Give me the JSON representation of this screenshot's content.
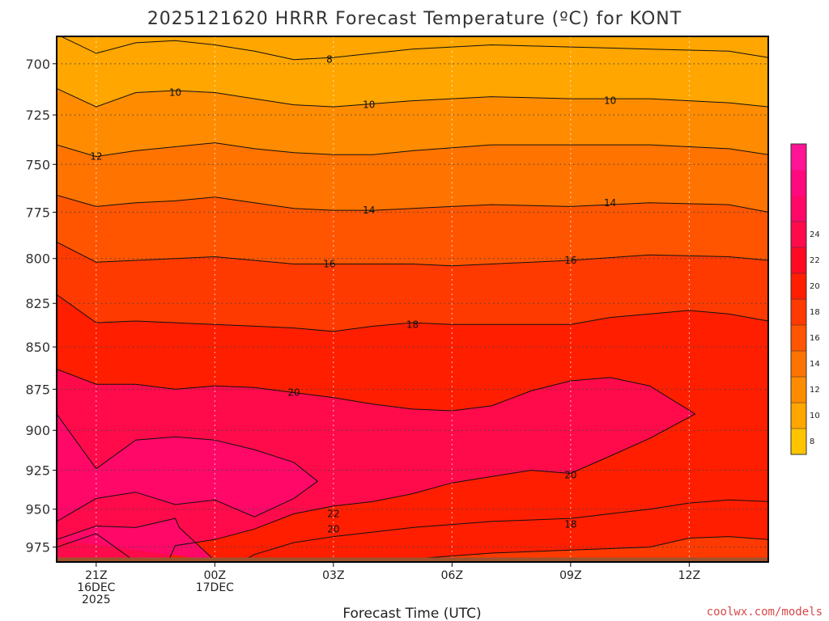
{
  "chart_data": {
    "type": "contour",
    "title": "2025121620 HRRR Forecast Temperature (ºC) for KONT",
    "xlabel": "Forecast Time (UTC)",
    "ylabel": "",
    "credit": "coolwx.com/models",
    "y_scale": "pressure (hPa), inverted",
    "ylim": [
      985,
      687
    ],
    "y_ticks": [
      700,
      725,
      750,
      775,
      800,
      825,
      850,
      875,
      900,
      925,
      950,
      975
    ],
    "x_range_hours": [
      -1.0,
      17.0
    ],
    "x_ticks": [
      {
        "hour": 0,
        "lines": [
          "21Z",
          "16DEC",
          "2025"
        ]
      },
      {
        "hour": 3,
        "lines": [
          "00Z",
          "17DEC"
        ]
      },
      {
        "hour": 6,
        "lines": [
          "03Z"
        ]
      },
      {
        "hour": 9,
        "lines": [
          "06Z"
        ]
      },
      {
        "hour": 12,
        "lines": [
          "09Z"
        ]
      },
      {
        "hour": 15,
        "lines": [
          "12Z"
        ]
      }
    ],
    "grid": true,
    "colorbar": {
      "placement": "right",
      "ticks": [
        8,
        10,
        12,
        14,
        16,
        18,
        20,
        22,
        24
      ],
      "colors": [
        "#ffc400",
        "#ffa600",
        "#ff8c00",
        "#ff7300",
        "#ff5500",
        "#ff3a00",
        "#ff1e00",
        "#ff0a22",
        "#ff0a4a",
        "#ff0868",
        "#ff0a7e",
        "#ff1496"
      ]
    },
    "ground_color": "#a0522d",
    "contours": [
      {
        "value": 8,
        "label_hours": [
          [
            5.9,
            698
          ]
        ],
        "points": [
          [
            -1,
            686
          ],
          [
            0,
            695
          ],
          [
            1,
            690
          ],
          [
            2,
            689
          ],
          [
            3,
            691
          ],
          [
            4,
            694
          ],
          [
            5,
            698
          ],
          [
            6,
            697
          ],
          [
            8,
            693
          ],
          [
            10,
            691
          ],
          [
            12,
            692
          ],
          [
            14,
            693
          ],
          [
            16,
            694
          ],
          [
            17,
            697
          ]
        ]
      },
      {
        "value": 10,
        "label_hours": [
          [
            2.0,
            714
          ],
          [
            6.9,
            720
          ],
          [
            13.0,
            718
          ]
        ],
        "points": [
          [
            -1,
            712
          ],
          [
            0,
            721
          ],
          [
            1,
            714
          ],
          [
            2,
            713
          ],
          [
            3,
            714
          ],
          [
            4,
            717
          ],
          [
            5,
            720
          ],
          [
            6,
            721
          ],
          [
            8,
            718
          ],
          [
            10,
            716
          ],
          [
            12,
            717
          ],
          [
            14,
            717
          ],
          [
            16,
            719
          ],
          [
            17,
            721
          ]
        ]
      },
      {
        "value": 12,
        "label_hours": [
          [
            0.0,
            746
          ]
        ],
        "points": [
          [
            -1,
            740
          ],
          [
            0,
            746
          ],
          [
            1,
            743
          ],
          [
            2,
            741
          ],
          [
            3,
            739
          ],
          [
            4,
            742
          ],
          [
            5,
            744
          ],
          [
            6,
            745
          ],
          [
            7,
            745
          ],
          [
            8,
            743
          ],
          [
            10,
            740
          ],
          [
            12,
            740
          ],
          [
            14,
            740
          ],
          [
            16,
            742
          ],
          [
            17,
            745
          ]
        ]
      },
      {
        "value": 14,
        "label_hours": [
          [
            6.9,
            774
          ],
          [
            13.0,
            770
          ]
        ],
        "points": [
          [
            -1,
            766
          ],
          [
            0,
            772
          ],
          [
            1,
            770
          ],
          [
            2,
            769
          ],
          [
            3,
            767
          ],
          [
            4,
            770
          ],
          [
            5,
            773
          ],
          [
            6,
            774
          ],
          [
            7,
            774
          ],
          [
            8,
            773
          ],
          [
            9,
            772
          ],
          [
            10,
            771
          ],
          [
            12,
            772
          ],
          [
            14,
            770
          ],
          [
            16,
            771
          ],
          [
            17,
            775
          ]
        ]
      },
      {
        "value": 16,
        "label_hours": [
          [
            5.9,
            803
          ],
          [
            12.0,
            801
          ]
        ],
        "points": [
          [
            -1,
            791
          ],
          [
            0,
            802
          ],
          [
            1,
            801
          ],
          [
            2,
            800
          ],
          [
            3,
            799
          ],
          [
            4,
            801
          ],
          [
            5,
            803
          ],
          [
            6,
            803
          ],
          [
            7,
            803
          ],
          [
            8,
            803
          ],
          [
            9,
            804
          ],
          [
            10,
            803
          ],
          [
            12,
            801
          ],
          [
            14,
            798
          ],
          [
            16,
            799
          ],
          [
            17,
            801
          ]
        ]
      },
      {
        "value": 18,
        "label_hours": [
          [
            8.0,
            837
          ],
          [
            12.0,
            960
          ]
        ],
        "points": [
          [
            -1,
            820
          ],
          [
            0,
            836
          ],
          [
            1,
            835
          ],
          [
            2,
            836
          ],
          [
            3,
            837
          ],
          [
            4,
            838
          ],
          [
            5,
            839
          ],
          [
            6,
            841
          ],
          [
            7,
            838
          ],
          [
            8,
            836
          ],
          [
            9,
            837
          ],
          [
            10,
            837
          ],
          [
            12,
            837
          ],
          [
            13,
            833
          ],
          [
            15,
            829
          ],
          [
            16,
            831
          ],
          [
            17,
            835
          ]
        ]
      },
      {
        "value": 20,
        "label_hours": [
          [
            5.0,
            877
          ],
          [
            12.0,
            928
          ]
        ],
        "points": [
          [
            -1,
            863
          ],
          [
            0,
            872
          ],
          [
            1,
            872
          ],
          [
            2,
            875
          ],
          [
            3,
            873
          ],
          [
            4,
            874
          ],
          [
            5,
            877
          ],
          [
            6,
            880
          ],
          [
            7,
            884
          ],
          [
            8,
            887
          ],
          [
            9,
            888
          ],
          [
            10,
            885
          ],
          [
            11,
            876
          ],
          [
            12,
            870
          ],
          [
            13,
            868
          ],
          [
            14,
            873
          ],
          [
            15.15,
            890
          ],
          [
            14,
            905
          ],
          [
            13,
            916
          ],
          [
            12,
            927
          ],
          [
            11,
            925
          ],
          [
            10,
            929
          ],
          [
            9,
            933
          ],
          [
            8,
            940
          ],
          [
            7,
            945
          ],
          [
            6,
            948
          ],
          [
            5,
            953
          ],
          [
            4,
            963
          ],
          [
            3,
            970
          ],
          [
            2,
            974
          ],
          [
            1.8,
            986
          ]
        ]
      },
      {
        "value": 20,
        "label_hours": [
          [
            6.0,
            963
          ]
        ],
        "points": [
          [
            1,
            985
          ],
          [
            0,
            966
          ],
          [
            -1,
            975
          ]
        ]
      },
      {
        "value": 22,
        "label_hours": [
          [
            6.0,
            953
          ]
        ],
        "points": [
          [
            -1,
            890
          ],
          [
            0,
            924
          ],
          [
            1,
            906
          ],
          [
            2,
            904
          ],
          [
            3,
            906
          ],
          [
            4,
            912
          ],
          [
            5,
            920
          ],
          [
            5.6,
            932
          ],
          [
            5,
            943
          ],
          [
            4,
            955
          ],
          [
            3,
            944
          ],
          [
            2,
            947
          ],
          [
            1,
            939
          ],
          [
            0,
            943
          ],
          [
            -1,
            958
          ]
        ]
      },
      {
        "value": 22,
        "label_hours": [],
        "points": [
          [
            -1,
            970
          ],
          [
            0,
            961
          ],
          [
            1,
            962
          ],
          [
            2,
            956
          ],
          [
            2.1,
            962
          ],
          [
            3,
            984
          ]
        ]
      }
    ]
  }
}
